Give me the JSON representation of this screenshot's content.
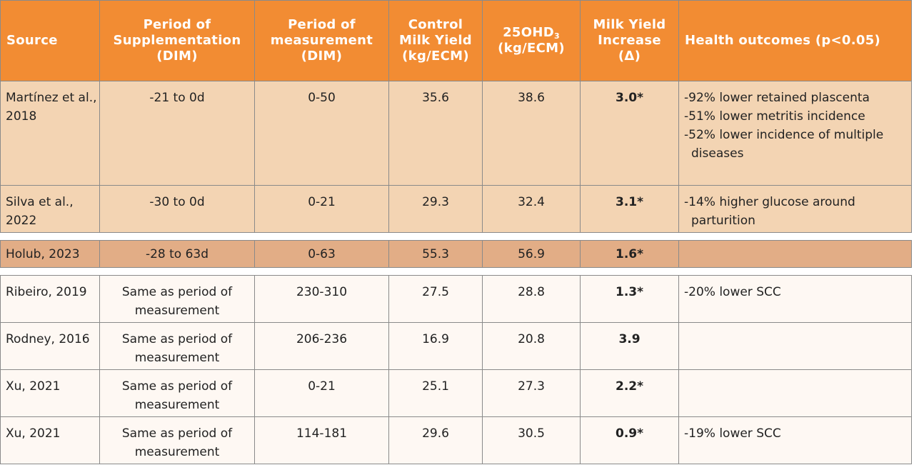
{
  "table": {
    "headers": {
      "source": "Source",
      "supp": [
        "Period of",
        "Supplementation",
        "(DIM)"
      ],
      "meas": [
        "Period of",
        "measurement",
        "(DIM)"
      ],
      "control": [
        "Control",
        "Milk Yield",
        "(kg/ECM)"
      ],
      "ohd_main": "25OHD",
      "ohd_sub": "3",
      "ohd_unit": "(kg/ECM)",
      "increase": [
        "Milk Yield",
        "Increase",
        "(Δ)"
      ],
      "health": "Health outcomes (p<0.05)"
    },
    "rows": [
      {
        "source": "Martínez et al., 2018",
        "supp": "-21 to 0d",
        "meas": "0-50",
        "control": "35.6",
        "ohd": "38.6",
        "increase": "3.0*",
        "health": [
          "-92% lower retained plascenta",
          "-51% lower metritis incidence",
          "-52% lower incidence of multiple diseases"
        ]
      },
      {
        "source": "Silva et al., 2022",
        "supp": "-30 to 0d",
        "meas": "0-21",
        "control": "29.3",
        "ohd": "32.4",
        "increase": "3.1*",
        "health": [
          "-14% higher glucose around parturition"
        ]
      },
      {
        "source": "Holub, 2023",
        "supp": "-28 to 63d",
        "meas": "0-63",
        "control": "55.3",
        "ohd": "56.9",
        "increase": "1.6*",
        "health": []
      },
      {
        "source": "Ribeiro, 2019",
        "supp": "Same as period of measurement",
        "meas": "230-310",
        "control": "27.5",
        "ohd": "28.8",
        "increase": "1.3*",
        "health": [
          "-20% lower SCC"
        ]
      },
      {
        "source": "Rodney, 2016",
        "supp": "Same as period of measurement",
        "meas": "206-236",
        "control": "16.9",
        "ohd": "20.8",
        "increase": "3.9",
        "health": []
      },
      {
        "source": "Xu, 2021",
        "supp": "Same as period of measurement",
        "meas": "0-21",
        "control": "25.1",
        "ohd": "27.3",
        "increase": "2.2*",
        "health": []
      },
      {
        "source": "Xu, 2021",
        "supp": "Same as period of measurement",
        "meas": "114-181",
        "control": "29.6",
        "ohd": "30.5",
        "increase": "0.9*",
        "health": [
          "-19% lower SCC"
        ]
      }
    ]
  }
}
